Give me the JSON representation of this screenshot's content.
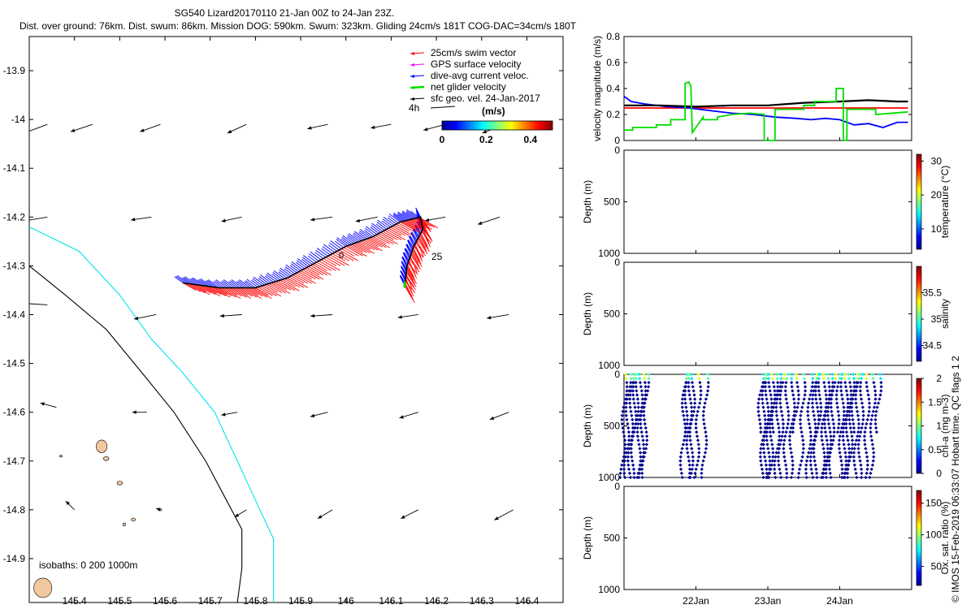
{
  "header": {
    "title": "SG540 Lizard20170110 21-Jan 00Z to 24-Jan 23Z.",
    "subtitle": "Dist. over ground: 76km. Dist. swum: 86km. Mission DOG: 590km. Swum: 323km. Gliding 24cm/s 181T COG-DAC=34cm/s 180T"
  },
  "footer": {
    "credit": "© IMOS 15-Feb-2019 06:33:07 Hobart time. QC flags 1  2"
  },
  "colors": {
    "swim": "#ff0000",
    "gps": "#ff00ff",
    "dac": "#0000ff",
    "net": "#00dd00",
    "sfc": "#000000",
    "iso0": "#000000",
    "iso200": "#000000",
    "iso1000": "#00e5ee",
    "land": "#f2c8a0",
    "temp_line": "#ff0000",
    "dac_line": "#0000ff",
    "net_line": "#00dd00",
    "sfc_line": "#000000"
  },
  "chart_data": [
    {
      "type": "map",
      "title": "Glider track with current vectors",
      "x_ticks": [
        "145.4",
        "145.5",
        "145.6",
        "145.7",
        "145.8",
        "145.9",
        "146",
        "146.1",
        "146.2",
        "146.3",
        "146.4"
      ],
      "y_ticks": [
        "-13.9",
        "-14",
        "-14.1",
        "-14.2",
        "-14.3",
        "-14.4",
        "-14.5",
        "-14.6",
        "-14.7",
        "-14.8",
        "-14.9"
      ],
      "xlim": [
        145.3,
        146.48
      ],
      "ylim": [
        -14.99,
        -13.83
      ],
      "legend": [
        {
          "label": "25cm/s swim vector",
          "key": "swim"
        },
        {
          "label": "GPS surface velocity",
          "key": "gps"
        },
        {
          "label": "dive-avg current veloc.",
          "key": "dac"
        },
        {
          "label": "net glider velocity",
          "key": "net"
        },
        {
          "label": "sfc geo. vel. 24-Jan-2017",
          "key": "sfc"
        }
      ],
      "legend_extra": {
        "label": "4h",
        "arrow_label": "(m/s)"
      },
      "colorbar": {
        "label": "(m/s)",
        "ticks": [
          "0",
          "0.2",
          "0.4"
        ],
        "range": [
          0,
          0.5
        ]
      },
      "isobaths_label": "isobaths: 0   200  1000m",
      "track_labels": [
        "25",
        "0"
      ],
      "track": [
        [
          145.64,
          -14.335
        ],
        [
          145.72,
          -14.345
        ],
        [
          145.8,
          -14.345
        ],
        [
          145.87,
          -14.325
        ],
        [
          145.93,
          -14.295
        ],
        [
          146.0,
          -14.26
        ],
        [
          146.06,
          -14.24
        ],
        [
          146.12,
          -14.21
        ],
        [
          146.165,
          -14.2
        ],
        [
          146.17,
          -14.225
        ],
        [
          146.15,
          -14.26
        ],
        [
          146.135,
          -14.3
        ],
        [
          146.13,
          -14.345
        ]
      ],
      "sfc_vectors": [
        {
          "lon": 145.34,
          "lat": -14.01,
          "u": -0.32,
          "v": -0.12
        },
        {
          "lon": 145.44,
          "lat": -14.01,
          "u": -0.3,
          "v": -0.1
        },
        {
          "lon": 145.59,
          "lat": -14.01,
          "u": -0.28,
          "v": -0.1
        },
        {
          "lon": 145.78,
          "lat": -14.01,
          "u": -0.26,
          "v": -0.12
        },
        {
          "lon": 145.96,
          "lat": -14.01,
          "u": -0.28,
          "v": -0.06
        },
        {
          "lon": 146.1,
          "lat": -14.01,
          "u": -0.28,
          "v": -0.05
        },
        {
          "lon": 146.22,
          "lat": -14.01,
          "u": -0.3,
          "v": -0.08
        },
        {
          "lon": 146.35,
          "lat": -14.01,
          "u": -0.3,
          "v": -0.12
        },
        {
          "lon": 145.34,
          "lat": -14.2,
          "u": -0.3,
          "v": -0.05
        },
        {
          "lon": 145.57,
          "lat": -14.2,
          "u": -0.28,
          "v": -0.04
        },
        {
          "lon": 145.77,
          "lat": -14.2,
          "u": -0.28,
          "v": -0.06
        },
        {
          "lon": 145.97,
          "lat": -14.2,
          "u": -0.3,
          "v": -0.04
        },
        {
          "lon": 146.07,
          "lat": -14.2,
          "u": -0.3,
          "v": -0.06
        },
        {
          "lon": 146.22,
          "lat": -14.2,
          "u": -0.28,
          "v": -0.05
        },
        {
          "lon": 146.34,
          "lat": -14.2,
          "u": -0.3,
          "v": -0.1
        },
        {
          "lon": 145.34,
          "lat": -14.38,
          "u": -0.3,
          "v": 0.02
        },
        {
          "lon": 145.58,
          "lat": -14.4,
          "u": -0.3,
          "v": -0.06
        },
        {
          "lon": 145.77,
          "lat": -14.4,
          "u": -0.3,
          "v": -0.02
        },
        {
          "lon": 145.97,
          "lat": -14.4,
          "u": -0.3,
          "v": -0.02
        },
        {
          "lon": 146.16,
          "lat": -14.4,
          "u": -0.28,
          "v": -0.04
        },
        {
          "lon": 146.36,
          "lat": -14.4,
          "u": -0.3,
          "v": -0.05
        },
        {
          "lon": 145.36,
          "lat": -14.59,
          "u": -0.22,
          "v": 0.06
        },
        {
          "lon": 145.56,
          "lat": -14.6,
          "u": -0.2,
          "v": 0.0
        },
        {
          "lon": 145.76,
          "lat": -14.6,
          "u": -0.22,
          "v": -0.04
        },
        {
          "lon": 145.96,
          "lat": -14.6,
          "u": -0.24,
          "v": -0.06
        },
        {
          "lon": 146.16,
          "lat": -14.6,
          "u": -0.26,
          "v": -0.08
        },
        {
          "lon": 146.36,
          "lat": -14.6,
          "u": -0.26,
          "v": -0.1
        },
        {
          "lon": 145.4,
          "lat": -14.8,
          "u": -0.12,
          "v": 0.12
        },
        {
          "lon": 145.59,
          "lat": -14.8,
          "u": -0.06,
          "v": 0.02
        },
        {
          "lon": 145.78,
          "lat": -14.8,
          "u": -0.16,
          "v": -0.1
        },
        {
          "lon": 145.97,
          "lat": -14.8,
          "u": -0.2,
          "v": -0.12
        },
        {
          "lon": 146.16,
          "lat": -14.8,
          "u": -0.24,
          "v": -0.12
        },
        {
          "lon": 146.37,
          "lat": -14.8,
          "u": -0.26,
          "v": -0.14
        }
      ],
      "isobath_0": [
        [
          145.3,
          -14.3
        ],
        [
          145.38,
          -14.36
        ],
        [
          145.47,
          -14.43
        ],
        [
          145.55,
          -14.52
        ],
        [
          145.62,
          -14.6
        ],
        [
          145.69,
          -14.7
        ],
        [
          145.73,
          -14.77
        ],
        [
          145.77,
          -14.84
        ],
        [
          145.77,
          -14.92
        ],
        [
          145.76,
          -14.99
        ]
      ],
      "isobath_1000": [
        [
          145.3,
          -14.22
        ],
        [
          145.41,
          -14.27
        ],
        [
          145.5,
          -14.36
        ],
        [
          145.57,
          -14.45
        ],
        [
          145.64,
          -14.52
        ],
        [
          145.71,
          -14.6
        ],
        [
          145.76,
          -14.7
        ],
        [
          145.8,
          -14.78
        ],
        [
          145.84,
          -14.86
        ],
        [
          145.84,
          -14.92
        ],
        [
          145.84,
          -14.99
        ]
      ],
      "islands": [
        {
          "lon": 145.46,
          "lat": -14.67,
          "rx": 0.012,
          "ry": 0.013
        },
        {
          "lon": 145.47,
          "lat": -14.695,
          "rx": 0.006,
          "ry": 0.004
        },
        {
          "lon": 145.5,
          "lat": -14.745,
          "rx": 0.006,
          "ry": 0.004
        },
        {
          "lon": 145.53,
          "lat": -14.82,
          "rx": 0.005,
          "ry": 0.003
        },
        {
          "lon": 145.37,
          "lat": -14.69,
          "rx": 0.003,
          "ry": 0.002
        },
        {
          "lon": 145.33,
          "lat": -14.96,
          "rx": 0.02,
          "ry": 0.02
        },
        {
          "lon": 145.51,
          "lat": -14.83,
          "rx": 0.003,
          "ry": 0.003
        },
        {
          "lon": 145.59,
          "lat": -14.8,
          "rx": 0.003,
          "ry": 0.002
        }
      ]
    },
    {
      "type": "line",
      "ylabel": "velocity magnitude (m/s)",
      "xlim": [
        21.0,
        25.0
      ],
      "ylim": [
        0,
        0.8
      ],
      "y_ticks": [
        "0",
        "0.2",
        "0.4",
        "0.6",
        "0.8"
      ],
      "series": [
        {
          "name": "swim",
          "key": "temp_line",
          "x": [
            21.0,
            24.95
          ],
          "y": [
            0.25,
            0.25
          ]
        },
        {
          "name": "dive-avg current",
          "key": "dac_line",
          "x": [
            21.0,
            21.1,
            21.3,
            21.6,
            21.9,
            22.2,
            22.5,
            22.8,
            23.1,
            23.4,
            23.6,
            23.8,
            24.0,
            24.2,
            24.4,
            24.6,
            24.8,
            24.95
          ],
          "y": [
            0.34,
            0.3,
            0.28,
            0.26,
            0.25,
            0.23,
            0.21,
            0.2,
            0.18,
            0.17,
            0.16,
            0.17,
            0.16,
            0.12,
            0.13,
            0.1,
            0.14,
            0.14
          ]
        },
        {
          "name": "sfc geo. vel.",
          "key": "sfc_line",
          "x": [
            21.0,
            21.5,
            22.0,
            22.5,
            23.0,
            23.5,
            24.0,
            24.4,
            24.8,
            24.95
          ],
          "y": [
            0.27,
            0.27,
            0.26,
            0.27,
            0.27,
            0.29,
            0.3,
            0.31,
            0.3,
            0.3
          ]
        },
        {
          "name": "net glider velocity",
          "key": "net_line",
          "x": [
            21.0,
            21.12,
            21.12,
            21.45,
            21.45,
            21.65,
            21.65,
            21.85,
            21.85,
            21.9,
            21.93,
            21.95,
            22.1,
            22.1,
            22.3,
            22.3,
            22.5,
            22.75,
            22.75,
            22.95,
            22.95,
            23.1,
            23.1,
            23.5,
            23.5,
            23.65,
            23.65,
            23.95,
            23.95,
            24.05,
            24.05,
            24.1,
            24.1,
            24.5,
            24.5,
            24.95
          ],
          "y": [
            0.08,
            0.08,
            0.1,
            0.1,
            0.12,
            0.12,
            0.16,
            0.16,
            0.44,
            0.45,
            0.42,
            0.06,
            0.18,
            0.16,
            0.16,
            0.18,
            0.2,
            0.21,
            0.21,
            0.2,
            0.0,
            0.0,
            0.24,
            0.24,
            0.27,
            0.27,
            0.3,
            0.3,
            0.4,
            0.4,
            0.0,
            0.0,
            0.24,
            0.24,
            0.2,
            0.22
          ]
        }
      ]
    },
    {
      "type": "scatter",
      "ylabel": "Depth (m)",
      "y_ticks": [
        "0",
        "500",
        "1000"
      ],
      "colorbar": {
        "label": "temperature (°C)",
        "ticks": [
          "10",
          "20",
          "30"
        ],
        "range": [
          4,
          32
        ]
      },
      "points": []
    },
    {
      "type": "scatter",
      "ylabel": "Depth (m)",
      "y_ticks": [
        "0",
        "500",
        "1000"
      ],
      "colorbar": {
        "label": "salinity",
        "ticks": [
          "34.5",
          "35",
          "35.5"
        ],
        "range": [
          34.2,
          36.0
        ]
      },
      "points": []
    },
    {
      "type": "scatter",
      "ylabel": "Depth (m)",
      "y_ticks": [
        "0",
        "500",
        "1000"
      ],
      "colorbar": {
        "label": "chl-a (mg m-3)",
        "ticks": [
          "0",
          "0.5",
          "1",
          "1.5",
          "2"
        ],
        "range": [
          0,
          2
        ]
      },
      "profiles_x": [
        21.02,
        21.07,
        21.12,
        21.16,
        21.2,
        21.24,
        21.28,
        21.32,
        21.85,
        21.89,
        21.93,
        21.97,
        22.05,
        22.15,
        22.92,
        22.96,
        23.0,
        23.04,
        23.08,
        23.12,
        23.16,
        23.21,
        23.28,
        23.36,
        23.42,
        23.5,
        23.6,
        23.66,
        23.7,
        23.74,
        23.8,
        23.84,
        23.88,
        23.92,
        24.0,
        24.05,
        24.1,
        24.14,
        24.18,
        24.22,
        24.26,
        24.32,
        24.4,
        24.48,
        24.56
      ],
      "depth_range": [
        80,
        1000
      ],
      "surface_values": [
        1.2,
        0.9,
        0.7
      ]
    },
    {
      "type": "scatter",
      "ylabel": "Depth (m)",
      "y_ticks": [
        "0",
        "500",
        "1000"
      ],
      "colorbar": {
        "label": "Ox. sat. ratio (%)",
        "ticks": [
          "50",
          "100",
          "150"
        ],
        "range": [
          20,
          170
        ]
      },
      "x_ticks": [
        "22Jan",
        "23Jan",
        "24Jan"
      ],
      "points": []
    }
  ]
}
